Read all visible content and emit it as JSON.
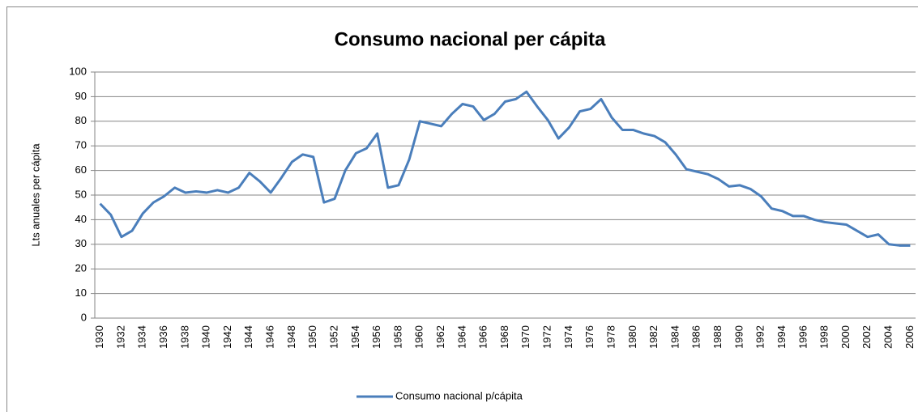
{
  "chart_data": {
    "type": "line",
    "title": "Consumo nacional per cápita",
    "y_label": "Lts anuales per cápita",
    "categories": [
      "1930",
      null,
      "1932",
      null,
      "1934",
      null,
      "1936",
      null,
      "1938",
      null,
      "1940",
      null,
      "1942",
      null,
      "1944",
      null,
      "1946",
      null,
      "1948",
      null,
      "1950",
      null,
      "1952",
      null,
      "1954",
      null,
      "1956",
      null,
      "1958",
      null,
      "1960",
      null,
      "1962",
      null,
      "1964",
      null,
      "1966",
      null,
      "1968",
      null,
      "1970",
      null,
      "1972",
      null,
      "1974",
      null,
      "1976",
      null,
      "1978",
      null,
      "1980",
      null,
      "1982",
      null,
      "1984",
      null,
      "1986",
      null,
      "1988",
      null,
      "1990",
      null,
      "1992",
      null,
      "1994",
      null,
      "1996",
      null,
      "1998",
      null,
      "2000",
      null,
      "2002",
      null,
      "2004",
      null,
      "2006"
    ],
    "series": [
      {
        "name": "Consumo nacional p/cápita",
        "color": "#4a7ebb",
        "values": [
          46.5,
          42,
          33,
          35.5,
          42.5,
          47,
          49.5,
          53,
          51,
          51.5,
          51,
          52,
          51,
          53,
          59,
          55.5,
          51,
          57,
          63.5,
          66.5,
          65.5,
          47,
          48.5,
          60,
          67,
          69,
          75,
          53,
          54,
          64.5,
          80,
          79,
          78,
          83,
          87,
          86,
          80.5,
          83,
          88,
          89,
          92,
          86,
          80.5,
          73,
          77.5,
          84,
          85,
          89,
          81.5,
          76.5,
          76.5,
          75,
          74,
          71.5,
          66.5,
          60.5,
          59.5,
          58.5,
          56.5,
          53.5,
          54,
          52.5,
          49.5,
          44.5,
          43.5,
          41.5,
          41.5,
          40,
          39,
          38.5,
          38,
          35.5,
          33,
          34,
          30,
          29.5,
          29.5
        ]
      }
    ],
    "ylim": [
      0,
      100
    ],
    "yticks": [
      0,
      10,
      20,
      30,
      40,
      50,
      60,
      70,
      80,
      90,
      100
    ],
    "grid": true,
    "legend": "bottom"
  }
}
